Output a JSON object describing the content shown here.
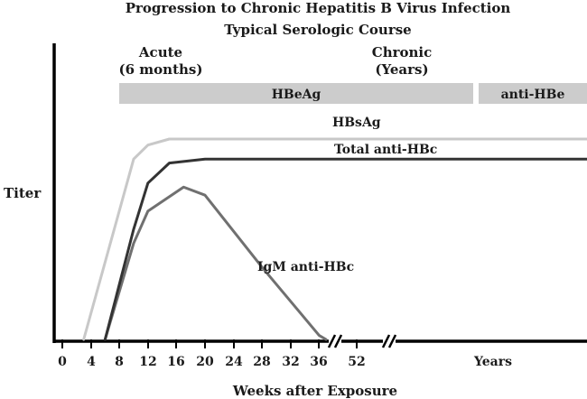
{
  "chart_data": {
    "type": "line",
    "title": "Progression to Chronic Hepatitis B Virus Infection",
    "subtitle": "Typical Serologic Course",
    "xlabel": "Weeks after Exposure",
    "ylabel": "Titer",
    "x_ticks": [
      "0",
      "4",
      "8",
      "12",
      "16",
      "20",
      "24",
      "28",
      "32",
      "36",
      "52",
      "Years"
    ],
    "phases": [
      {
        "name": "Acute",
        "detail": "(6 months)"
      },
      {
        "name": "Chronic",
        "detail": "(Years)"
      }
    ],
    "bands": [
      {
        "label": "HBeAg",
        "start_week": 8,
        "end": "chronic"
      },
      {
        "label": "anti-HBe",
        "start": "years"
      }
    ],
    "series": [
      {
        "name": "HBsAg",
        "color": "#c8c8c8",
        "points": [
          [
            3,
            0
          ],
          [
            10,
            0.9
          ],
          [
            12,
            0.97
          ],
          [
            15,
            1.0
          ],
          [
            36,
            1.0
          ],
          [
            52,
            1.0
          ],
          [
            "Years",
            1.0
          ]
        ]
      },
      {
        "name": "Total anti-HBc",
        "color": "#333333",
        "points": [
          [
            6,
            0
          ],
          [
            10,
            0.55
          ],
          [
            12,
            0.78
          ],
          [
            15,
            0.88
          ],
          [
            20,
            0.9
          ],
          [
            36,
            0.9
          ],
          [
            52,
            0.9
          ],
          [
            "Years",
            0.9
          ]
        ]
      },
      {
        "name": "IgM anti-HBc",
        "color": "#707070",
        "points": [
          [
            6,
            0
          ],
          [
            10,
            0.48
          ],
          [
            12,
            0.64
          ],
          [
            17,
            0.76
          ],
          [
            20,
            0.72
          ],
          [
            28,
            0.36
          ],
          [
            36,
            0.02
          ],
          [
            38,
            0
          ]
        ]
      }
    ],
    "axis_breaks": [
      "after 36",
      "after 52"
    ],
    "grid": false,
    "legend": "inline labels"
  }
}
